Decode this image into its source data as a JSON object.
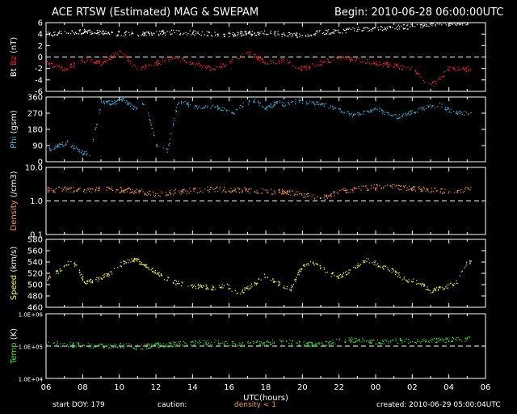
{
  "header": {
    "title": "ACE RTSW (Estimated) MAG & SWEPAM",
    "begin": "Begin: 2010-06-28 06:00:00UTC"
  },
  "footer": {
    "start_doy": "start DOY: 179",
    "caution": "caution:",
    "density_note": "density < 1",
    "created": "created: 2010-06-29 05:00:04UTC"
  },
  "colors": {
    "bt": "#ffffff",
    "bz": "#ff2020",
    "phi": "#30b8e8",
    "density": "#ff9a30",
    "speed": "#ffff30",
    "temp": "#30e830"
  },
  "chart_data": [
    {
      "type": "scatter",
      "ylabel_parts": [
        {
          "text": "Bt",
          "color": "#ffffff"
        },
        {
          "text": " Bz",
          "color": "#ff2020"
        },
        {
          "text": " (nT)",
          "color": "#ffffff"
        }
      ],
      "ylim": [
        -6,
        6
      ],
      "yticks": [
        -6,
        -4,
        -2,
        0,
        2,
        4,
        6
      ],
      "ytick_labels": [
        "-6",
        "-4",
        "-2",
        "0",
        "2",
        "4",
        "6"
      ],
      "ref_line": 0,
      "series": [
        {
          "color": "#ffffff",
          "x": [
            0,
            1,
            2,
            3,
            4,
            5,
            6,
            7,
            8,
            9,
            10,
            11,
            12,
            13,
            14,
            15,
            16,
            17,
            18,
            19,
            20,
            21,
            22,
            23
          ],
          "y": [
            4.0,
            4.3,
            4.5,
            4.4,
            4.2,
            4.0,
            4.2,
            4.4,
            4.3,
            4.1,
            4.0,
            4.2,
            4.3,
            4.0,
            3.9,
            4.4,
            4.6,
            4.9,
            5.0,
            5.2,
            5.4,
            5.8,
            6.0,
            6.1
          ]
        },
        {
          "color": "#ff2020",
          "x": [
            0,
            1,
            2,
            3,
            4,
            5,
            6,
            7,
            8,
            9,
            10,
            11,
            12,
            13,
            14,
            15,
            16,
            17,
            18,
            19,
            20,
            21,
            22,
            23
          ],
          "y": [
            -1,
            -2,
            -0.5,
            -1,
            1,
            -2,
            -1,
            0,
            -1,
            -2,
            -1,
            1,
            -1,
            -0.5,
            -2,
            -1,
            0,
            -0.5,
            -1,
            -1.5,
            -2,
            -5,
            -2,
            -2
          ]
        }
      ]
    },
    {
      "type": "scatter",
      "ylabel_parts": [
        {
          "text": "Phi",
          "color": "#30b8e8"
        },
        {
          "text": " (gsm)",
          "color": "#ffffff"
        }
      ],
      "ylim": [
        0,
        360
      ],
      "yticks": [
        0,
        90,
        180,
        270,
        360
      ],
      "ytick_labels": [
        "0",
        "90",
        "180",
        "270",
        "360"
      ],
      "series": [
        {
          "color": "#30b8e8",
          "x": [
            0,
            0.6,
            1.2,
            1.8,
            2.4,
            3,
            3.6,
            4.2,
            4.8,
            5.4,
            6,
            6.6,
            7.2,
            7.8,
            8.4,
            9,
            9.6,
            10.2,
            10.8,
            11.4,
            12,
            12.6,
            13.2,
            13.8,
            14.4,
            15,
            15.6,
            16.2,
            16.8,
            17.4,
            18,
            18.6,
            19.2,
            19.8,
            20.6,
            21.4,
            22.2,
            23
          ],
          "y": [
            60,
            90,
            110,
            60,
            40,
            335,
            330,
            345,
            300,
            330,
            100,
            60,
            340,
            320,
            300,
            310,
            295,
            270,
            330,
            340,
            300,
            330,
            320,
            345,
            330,
            325,
            300,
            280,
            260,
            280,
            300,
            270,
            250,
            270,
            300,
            320,
            280,
            270
          ]
        }
      ]
    },
    {
      "type": "scatter",
      "ylabel_parts": [
        {
          "text": "Density",
          "color": "#ff9a30"
        },
        {
          "text": " (/cm3)",
          "color": "#ffffff"
        }
      ],
      "yscale": "log",
      "ylim": [
        0.1,
        10
      ],
      "yticks": [
        0.1,
        1,
        10
      ],
      "ytick_labels": [
        "0.1",
        "1.0",
        "10.0"
      ],
      "ref_line": 1,
      "series": [
        {
          "color": "#ff9a30",
          "x": [
            0,
            1,
            2,
            3,
            4,
            5,
            6,
            7,
            8,
            9,
            10,
            11,
            12,
            13,
            14,
            15,
            16,
            17,
            18,
            19,
            20,
            21,
            22,
            23
          ],
          "y": [
            2.2,
            2.3,
            2.1,
            2.4,
            2.2,
            2.0,
            1.6,
            1.9,
            2.1,
            2.3,
            2.2,
            2.1,
            2.0,
            1.9,
            1.6,
            1.2,
            1.9,
            2.4,
            2.6,
            2.7,
            2.4,
            2.2,
            1.9,
            2.3
          ]
        }
      ]
    },
    {
      "type": "scatter",
      "ylabel_parts": [
        {
          "text": "Speed",
          "color": "#ffff30"
        },
        {
          "text": " (km/s)",
          "color": "#ffffff"
        }
      ],
      "ylim": [
        460,
        580
      ],
      "yticks": [
        460,
        480,
        500,
        520,
        540,
        560,
        580
      ],
      "ytick_labels": [
        "460",
        "480",
        "500",
        "520",
        "540",
        "560",
        "580"
      ],
      "series": [
        {
          "color": "#ffff30",
          "x": [
            0,
            0.7,
            1.4,
            2.1,
            2.8,
            3.5,
            4.2,
            4.9,
            5.6,
            6.3,
            7,
            7.7,
            8.4,
            9.1,
            9.8,
            10.5,
            11.2,
            11.9,
            12.6,
            13.3,
            14,
            14.7,
            15.4,
            16.1,
            16.8,
            17.5,
            18.2,
            18.9,
            19.6,
            20.3,
            21,
            21.7,
            22.4,
            23
          ],
          "y": [
            510,
            525,
            545,
            505,
            510,
            520,
            540,
            545,
            530,
            515,
            505,
            500,
            498,
            495,
            500,
            485,
            498,
            515,
            505,
            490,
            535,
            540,
            520,
            515,
            530,
            545,
            535,
            525,
            510,
            505,
            490,
            495,
            505,
            540
          ]
        }
      ]
    },
    {
      "type": "scatter",
      "ylabel_parts": [
        {
          "text": "Temp",
          "color": "#30e830"
        },
        {
          "text": " (K)",
          "color": "#ffffff"
        }
      ],
      "yscale": "log",
      "ylim": [
        10000,
        1000000
      ],
      "yticks": [
        10000,
        100000,
        1000000
      ],
      "ytick_labels": [
        "1.0E+04",
        "1.0E+05",
        "1.0E+06"
      ],
      "ref_line": 100000,
      "series": [
        {
          "color": "#30e830",
          "x": [
            0,
            1,
            2,
            3,
            4,
            5,
            6,
            7,
            8,
            9,
            10,
            11,
            12,
            13,
            14,
            15,
            16,
            17,
            18,
            19,
            20,
            21,
            22,
            23
          ],
          "y": [
            120000,
            115000,
            110000,
            100000,
            110000,
            95000,
            110000,
            120000,
            130000,
            135000,
            120000,
            125000,
            130000,
            140000,
            120000,
            110000,
            150000,
            165000,
            140000,
            150000,
            145000,
            155000,
            160000,
            175000
          ]
        }
      ]
    }
  ],
  "xaxis": {
    "label": "UTC(hours)",
    "ticks": [
      "06",
      "08",
      "10",
      "12",
      "14",
      "16",
      "18",
      "20",
      "22",
      "00",
      "02",
      "04",
      "06"
    ]
  }
}
